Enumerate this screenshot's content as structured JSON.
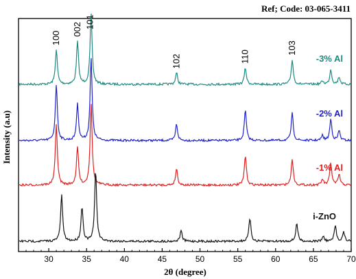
{
  "chart_data": {
    "type": "line",
    "reference_code": "Ref; Code: 03-065-3411",
    "xlabel": "2θ (degree)",
    "ylabel": "Intensity (a.u)",
    "xlim": [
      26,
      70
    ],
    "x_ticks": [
      30,
      35,
      40,
      45,
      50,
      55,
      60,
      65,
      70
    ],
    "grid": false,
    "peak_labels": [
      {
        "text": "100",
        "x": 31.0
      },
      {
        "text": "002",
        "x": 33.8
      },
      {
        "text": "101",
        "x": 35.5
      },
      {
        "text": "102",
        "x": 46.9
      },
      {
        "text": "110",
        "x": 56.0
      },
      {
        "text": "103",
        "x": 62.2
      }
    ],
    "series": [
      {
        "name": "-3% Al",
        "color": "#1a8a80",
        "peaks": [
          {
            "x": 31.0,
            "h": 0.42
          },
          {
            "x": 33.8,
            "h": 0.52
          },
          {
            "x": 35.6,
            "h": 0.85
          },
          {
            "x": 46.9,
            "h": 0.14
          },
          {
            "x": 56.0,
            "h": 0.2
          },
          {
            "x": 62.2,
            "h": 0.3
          },
          {
            "x": 66.2,
            "h": 0.04
          },
          {
            "x": 67.3,
            "h": 0.18
          },
          {
            "x": 68.4,
            "h": 0.09
          }
        ]
      },
      {
        "name": "-2% Al",
        "color": "#1f22c8",
        "peaks": [
          {
            "x": 31.0,
            "h": 0.68
          },
          {
            "x": 33.8,
            "h": 0.44
          },
          {
            "x": 35.6,
            "h": 1.0
          },
          {
            "x": 46.9,
            "h": 0.2
          },
          {
            "x": 56.0,
            "h": 0.37
          },
          {
            "x": 62.2,
            "h": 0.33
          },
          {
            "x": 66.2,
            "h": 0.06
          },
          {
            "x": 67.3,
            "h": 0.26
          },
          {
            "x": 68.4,
            "h": 0.12
          }
        ]
      },
      {
        "name": "-1% Al",
        "color": "#e02020",
        "peaks": [
          {
            "x": 31.0,
            "h": 0.74
          },
          {
            "x": 33.8,
            "h": 0.46
          },
          {
            "x": 35.6,
            "h": 1.0
          },
          {
            "x": 46.9,
            "h": 0.2
          },
          {
            "x": 56.0,
            "h": 0.36
          },
          {
            "x": 62.2,
            "h": 0.32
          },
          {
            "x": 66.2,
            "h": 0.07
          },
          {
            "x": 67.3,
            "h": 0.27
          },
          {
            "x": 68.4,
            "h": 0.13
          }
        ]
      },
      {
        "name": "i-ZnO",
        "color": "#111111",
        "peaks": [
          {
            "x": 31.7,
            "h": 0.56
          },
          {
            "x": 34.4,
            "h": 0.42
          },
          {
            "x": 36.2,
            "h": 0.86
          },
          {
            "x": 47.5,
            "h": 0.13
          },
          {
            "x": 56.6,
            "h": 0.28
          },
          {
            "x": 62.8,
            "h": 0.22
          },
          {
            "x": 66.3,
            "h": 0.06
          },
          {
            "x": 67.9,
            "h": 0.19
          },
          {
            "x": 69.0,
            "h": 0.11
          }
        ]
      }
    ]
  }
}
